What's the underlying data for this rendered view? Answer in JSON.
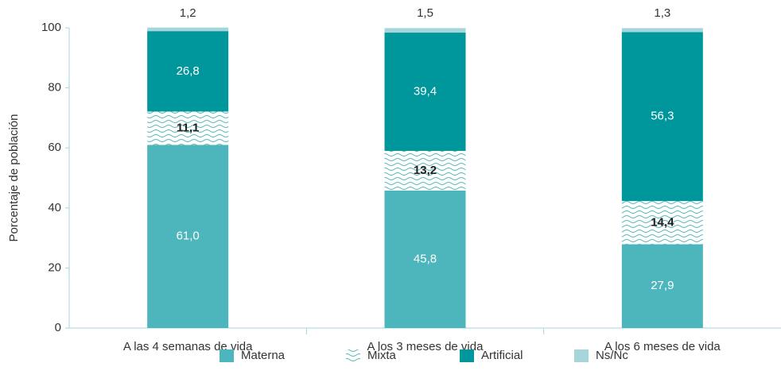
{
  "chart_data": {
    "type": "stacked_bar",
    "y_label": "Porcentaje de población",
    "categories": [
      "A las 4 semanas de vida",
      "A los 3 meses de vida",
      "A los 6 meses de vida"
    ],
    "series": [
      {
        "name": "Materna",
        "color": "#4db6bc",
        "values": [
          61.0,
          45.8,
          27.9
        ],
        "value_labels": [
          "61,0",
          "45,8",
          "27,9"
        ]
      },
      {
        "name": "Mixta",
        "color": "#4db6bc",
        "pattern": "waves",
        "values": [
          11.1,
          13.2,
          14.4
        ],
        "value_labels": [
          "11,1",
          "13,2",
          "14,4"
        ]
      },
      {
        "name": "Artificial",
        "color": "#00979c",
        "values": [
          26.8,
          39.4,
          56.3
        ],
        "value_labels": [
          "26,8",
          "39,4",
          "56,3"
        ]
      },
      {
        "name": "Ns/Nc",
        "color": "#a6d6dc",
        "values": [
          1.2,
          1.5,
          1.3
        ],
        "value_labels": [
          "1,2",
          "1,5",
          "1,3"
        ]
      }
    ],
    "ylim": [
      0,
      100
    ],
    "yticks": [
      0,
      20,
      40,
      60,
      80,
      100
    ],
    "grid": false,
    "legend": "bottom"
  }
}
